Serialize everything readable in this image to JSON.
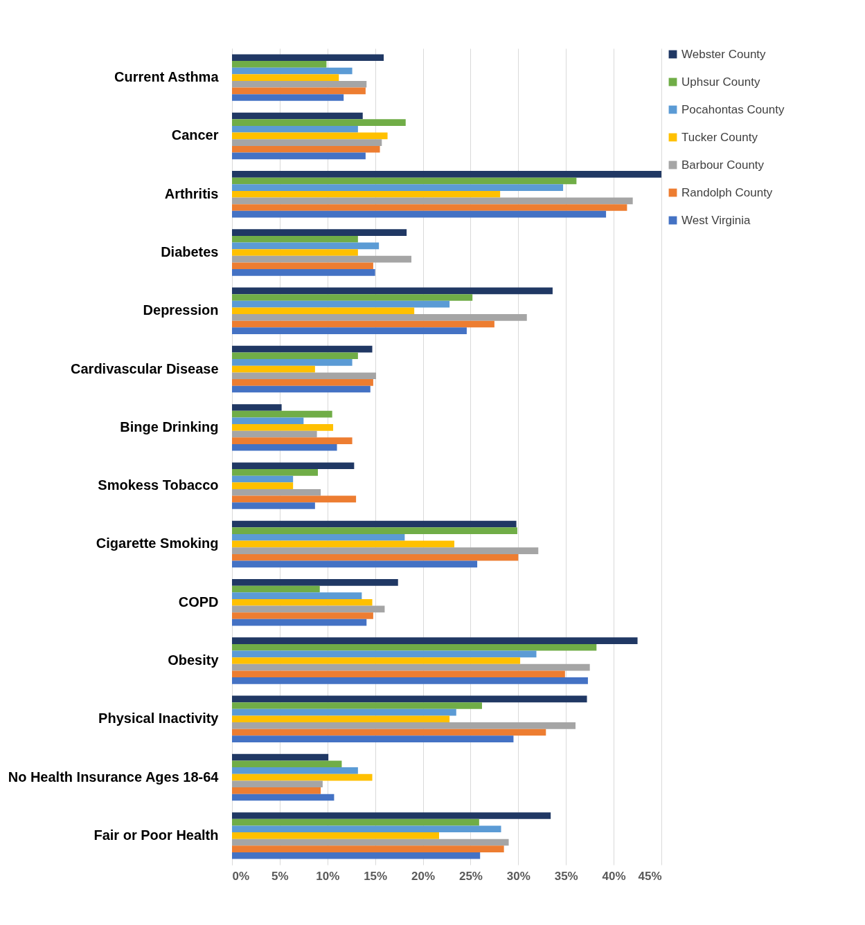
{
  "chart_data": {
    "type": "bar",
    "orientation": "horizontal",
    "categories": [
      "Current Asthma",
      "Cancer",
      "Arthritis",
      "Diabetes",
      "Depression",
      "Cardivascular Disease",
      "Binge Drinking",
      "Smokess Tobacco",
      "Cigarette Smoking",
      "COPD",
      "Obesity",
      "Physical Inactivity",
      "No Health Insurance Ages 18-64",
      "Fair or Poor Health"
    ],
    "series": [
      {
        "name": "Webster County",
        "color": "#203864",
        "values": [
          15.9,
          13.7,
          45,
          18.3,
          33.6,
          14.7,
          5.2,
          12.8,
          29.8,
          17.4,
          42.5,
          37.2,
          10.1,
          33.4
        ]
      },
      {
        "name": "Uphsur County",
        "color": "#70ad47",
        "values": [
          9.9,
          18.2,
          36.1,
          13.2,
          25.2,
          13.2,
          10.5,
          9.0,
          29.9,
          9.2,
          38.2,
          26.2,
          11.5,
          25.9
        ]
      },
      {
        "name": "Pocahontas County",
        "color": "#5b9bd5",
        "values": [
          12.6,
          13.2,
          34.7,
          15.4,
          22.8,
          12.6,
          7.5,
          6.4,
          18.1,
          13.6,
          31.9,
          23.5,
          13.2,
          28.2
        ]
      },
      {
        "name": "Tucker County",
        "color": "#ffc000",
        "values": [
          11.2,
          16.3,
          28.1,
          13.2,
          19.1,
          8.7,
          10.6,
          6.4,
          23.3,
          14.7,
          30.2,
          22.8,
          14.7,
          21.7
        ]
      },
      {
        "name": "Barbour County",
        "color": "#a5a5a5",
        "values": [
          14.1,
          15.7,
          42.0,
          18.8,
          30.9,
          15.1,
          8.9,
          9.3,
          32.1,
          16.0,
          37.5,
          36.0,
          9.5,
          29.0
        ]
      },
      {
        "name": "Randolph County",
        "color": "#ed7d31",
        "values": [
          14.0,
          15.5,
          41.4,
          14.8,
          27.5,
          14.8,
          12.6,
          13.0,
          30.0,
          14.8,
          34.9,
          32.9,
          9.3,
          28.5
        ]
      },
      {
        "name": "West Virginia",
        "color": "#4472c4",
        "values": [
          11.7,
          14.0,
          39.2,
          15.0,
          24.6,
          14.5,
          11.0,
          8.7,
          25.7,
          14.1,
          37.3,
          29.5,
          10.7,
          26.0
        ]
      }
    ],
    "xlim": [
      0,
      45
    ],
    "xticks": [
      {
        "value": 0,
        "label": "0%"
      },
      {
        "value": 5,
        "label": "5%"
      },
      {
        "value": 10,
        "label": "10%"
      },
      {
        "value": 15,
        "label": "15%"
      },
      {
        "value": 20,
        "label": "20%"
      },
      {
        "value": 25,
        "label": "25%"
      },
      {
        "value": 30,
        "label": "30%"
      },
      {
        "value": 35,
        "label": "35%"
      },
      {
        "value": 40,
        "label": "40%"
      },
      {
        "value": 45,
        "label": "45%"
      }
    ],
    "grid": "x",
    "legend": "right"
  }
}
